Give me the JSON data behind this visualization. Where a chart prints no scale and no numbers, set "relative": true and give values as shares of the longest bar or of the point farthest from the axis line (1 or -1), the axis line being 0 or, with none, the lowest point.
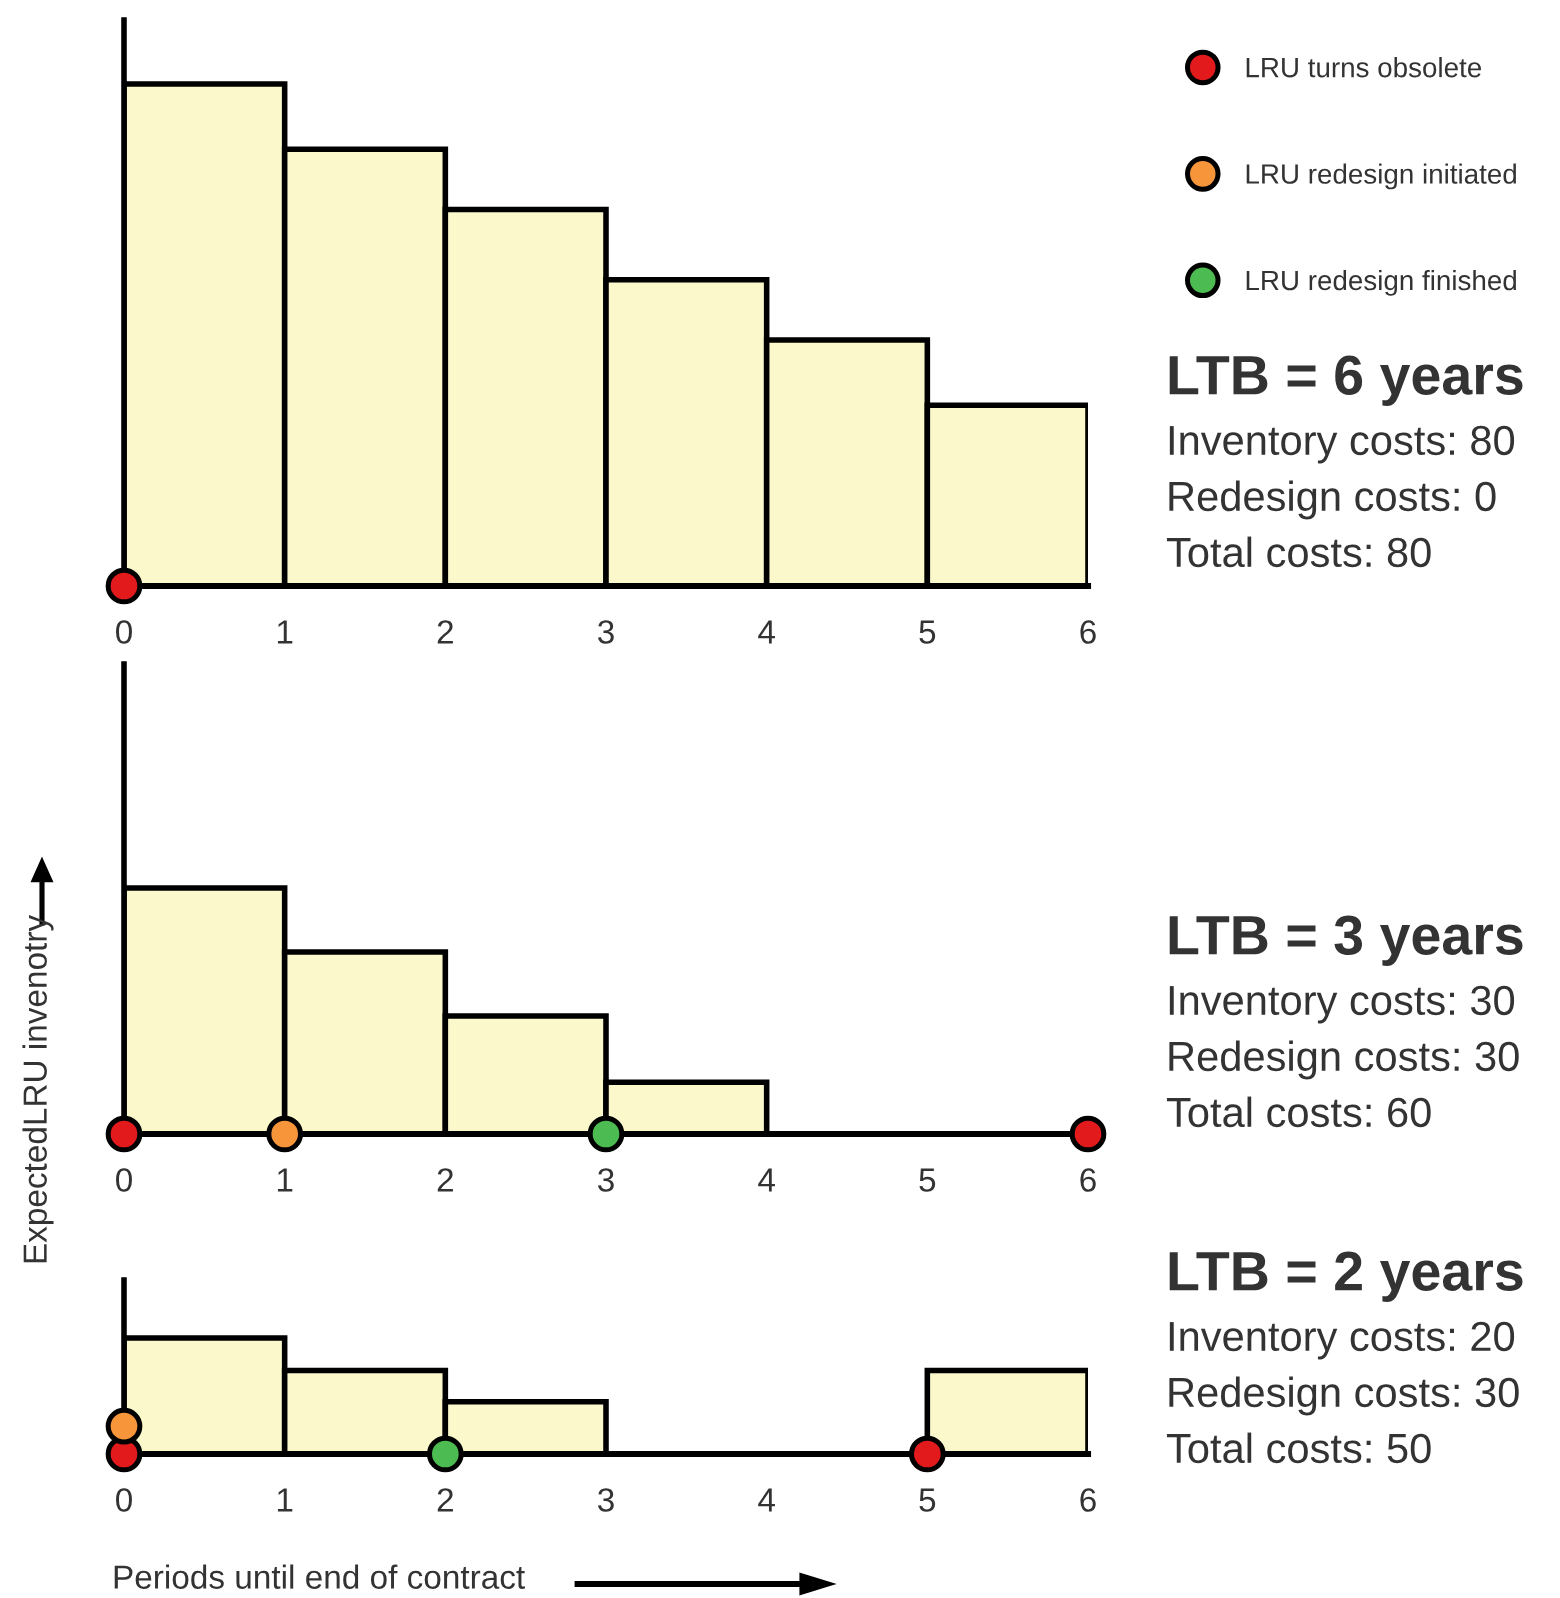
{
  "chart_data": [
    {
      "type": "bar",
      "relative": true,
      "annotations": [
        "LTB = 6 years",
        "Inventory costs: 80",
        "Redesign costs: 0",
        "Total costs: 80"
      ],
      "x": [
        0.5,
        1.5,
        2.5,
        3.5,
        4.5,
        5.5
      ],
      "values": [
        1,
        0.87,
        0.75,
        0.61,
        0.49,
        0.36
      ],
      "color": "#fbf9cc",
      "xlim": [
        0,
        6
      ],
      "xticks": [
        0,
        1,
        2,
        3,
        4,
        5,
        6
      ],
      "tick_labels": "x",
      "marker": "circle",
      "series": [
        {
          "type": "scatter",
          "color": "#e31a1c",
          "x": [
            0
          ],
          "values": [
            0
          ]
        }
      ]
    },
    {
      "type": "bar",
      "relative": true,
      "ylabel": "ExpectedLRU invenotry",
      "annotations": [
        "LTB = 3 years",
        "Inventory costs: 30",
        "Redesign costs: 30",
        "Total costs: 60"
      ],
      "x": [
        0.5,
        1.5,
        2.5,
        3.5
      ],
      "values": [
        1,
        0.74,
        0.48,
        0.21
      ],
      "color": "#fbf9cc",
      "xlim": [
        0,
        6
      ],
      "xticks": [
        0,
        1,
        2,
        3,
        4,
        5,
        6
      ],
      "tick_labels": "x",
      "legend": "top right",
      "marker": "circle",
      "series": [
        {
          "type": "scatter",
          "name": "LRU turns obsolete",
          "color": "#e31a1c",
          "x": [
            0,
            6
          ],
          "values": [
            0,
            0
          ]
        },
        {
          "type": "scatter",
          "name": "LRU redesign initiated",
          "color": "#f7953b",
          "x": [
            1
          ],
          "values": [
            0
          ]
        },
        {
          "type": "scatter",
          "name": "LRU redesign finished",
          "color": "#4cbb52",
          "x": [
            3
          ],
          "values": [
            0
          ]
        }
      ]
    },
    {
      "type": "bar",
      "relative": true,
      "xlabel": "Periods until end of contract",
      "annotations": [
        "LTB = 2 years",
        "Inventory costs: 20",
        "Redesign costs: 30",
        "Total costs: 50"
      ],
      "x": [
        0.5,
        1.5,
        2.5,
        5.5
      ],
      "values": [
        1,
        0.72,
        0.45,
        0.72
      ],
      "color": "#fbf9cc",
      "xlim": [
        0,
        6
      ],
      "xticks": [
        0,
        1,
        2,
        3,
        4,
        5,
        6
      ],
      "tick_labels": "x",
      "marker": "circle",
      "series": [
        {
          "type": "scatter",
          "color": "#e31a1c",
          "x": [
            0,
            5
          ],
          "values": [
            0,
            0
          ]
        },
        {
          "type": "scatter",
          "color": "#f7953b",
          "x": [
            0
          ],
          "values": [
            0.24
          ]
        },
        {
          "type": "scatter",
          "color": "#4cbb52",
          "x": [
            2
          ],
          "values": [
            0
          ]
        }
      ]
    }
  ]
}
